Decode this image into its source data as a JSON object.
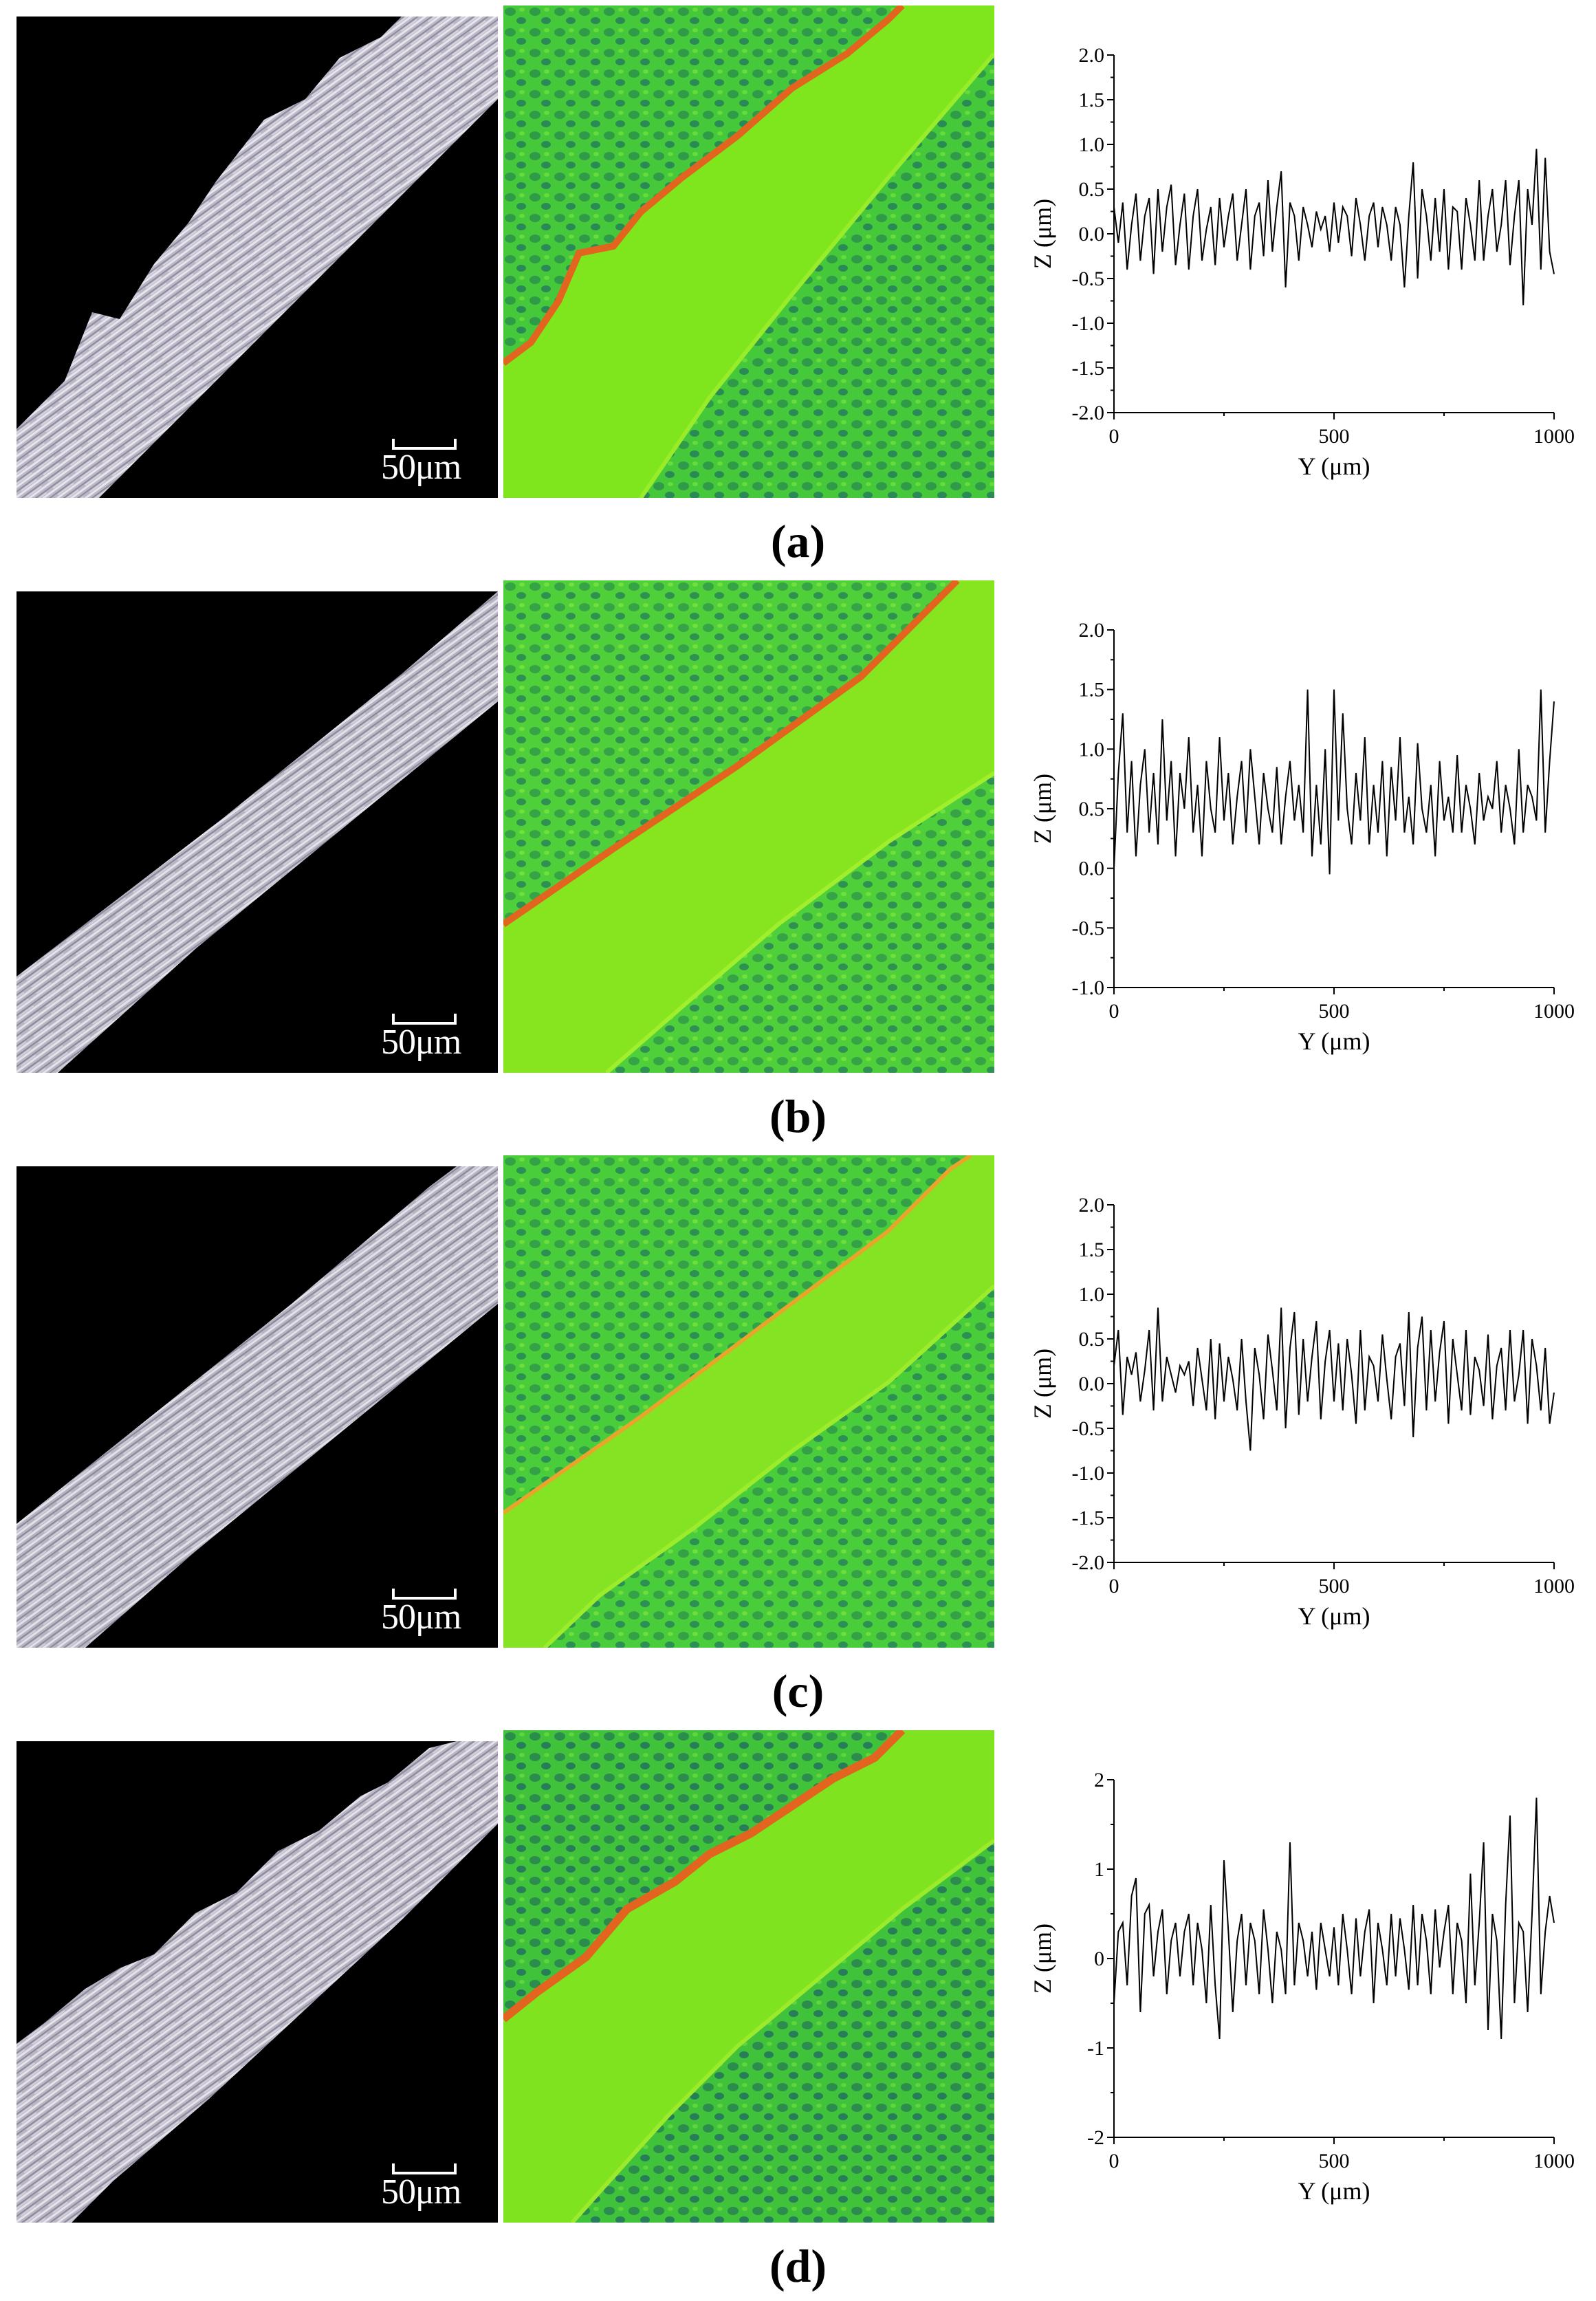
{
  "chart_data": [
    {
      "type": "line",
      "panel": "(a)",
      "xlabel": "Y (μm)",
      "ylabel": "Z (μm)",
      "xlim": [
        0,
        1000
      ],
      "ylim": [
        -2.0,
        2.0
      ],
      "xticks": [
        "0",
        "500",
        "1000"
      ],
      "yticks": [
        "-2.0",
        "-1.5",
        "-1.0",
        "-0.5",
        "0.0",
        "0.5",
        "1.0",
        "1.5",
        "2.0"
      ],
      "x": [
        0,
        10,
        20,
        30,
        40,
        50,
        60,
        70,
        80,
        90,
        100,
        110,
        120,
        130,
        140,
        150,
        160,
        170,
        180,
        190,
        200,
        210,
        220,
        230,
        240,
        250,
        260,
        270,
        280,
        290,
        300,
        310,
        320,
        330,
        340,
        350,
        360,
        370,
        380,
        390,
        400,
        410,
        420,
        430,
        440,
        450,
        460,
        470,
        480,
        490,
        500,
        510,
        520,
        530,
        540,
        550,
        560,
        570,
        580,
        590,
        600,
        610,
        620,
        630,
        640,
        650,
        660,
        670,
        680,
        690,
        700,
        710,
        720,
        730,
        740,
        750,
        760,
        770,
        780,
        790,
        800,
        810,
        820,
        830,
        840,
        850,
        860,
        870,
        880,
        890,
        900,
        910,
        920,
        930,
        940,
        950,
        960,
        970,
        980,
        990,
        1000
      ],
      "series": [
        {
          "values": [
            0.3,
            -0.1,
            0.35,
            -0.4,
            0.1,
            0.45,
            -0.3,
            0.2,
            0.4,
            -0.45,
            0.5,
            -0.2,
            0.3,
            0.55,
            -0.35,
            0.1,
            0.45,
            -0.4,
            0.2,
            0.5,
            -0.3,
            0.05,
            0.3,
            -0.35,
            0.4,
            -0.15,
            0.2,
            0.45,
            -0.3,
            0.1,
            0.5,
            -0.4,
            0.2,
            0.35,
            -0.25,
            0.6,
            -0.2,
            0.3,
            0.7,
            -0.6,
            0.35,
            0.2,
            -0.3,
            0.3,
            0.1,
            -0.15,
            0.25,
            0.05,
            0.2,
            -0.2,
            0.35,
            -0.1,
            0.3,
            0.2,
            -0.25,
            0.4,
            0.1,
            -0.3,
            0.2,
            0.35,
            -0.15,
            0.3,
            0.1,
            -0.3,
            0.3,
            0.1,
            -0.6,
            0.2,
            0.8,
            -0.5,
            0.5,
            0.2,
            -0.3,
            0.4,
            -0.2,
            0.5,
            -0.4,
            0.3,
            0.25,
            -0.4,
            0.4,
            0.1,
            -0.3,
            0.6,
            -0.3,
            0.2,
            0.5,
            -0.2,
            0.1,
            0.6,
            -0.35,
            0.2,
            0.6,
            -0.8,
            0.5,
            0.1,
            0.95,
            -0.4,
            0.85,
            -0.2,
            -0.45
          ]
        }
      ]
    },
    {
      "type": "line",
      "panel": "(b)",
      "xlabel": "Y (μm)",
      "ylabel": "Z (μm)",
      "xlim": [
        0,
        1000
      ],
      "ylim": [
        -1.0,
        2.0
      ],
      "xticks": [
        "0",
        "500",
        "1000"
      ],
      "yticks": [
        "-1.0",
        "-0.5",
        "0.0",
        "0.5",
        "1.0",
        "1.5",
        "2.0"
      ],
      "x": [
        0,
        10,
        20,
        30,
        40,
        50,
        60,
        70,
        80,
        90,
        100,
        110,
        120,
        130,
        140,
        150,
        160,
        170,
        180,
        190,
        200,
        210,
        220,
        230,
        240,
        250,
        260,
        270,
        280,
        290,
        300,
        310,
        320,
        330,
        340,
        350,
        360,
        370,
        380,
        390,
        400,
        410,
        420,
        430,
        440,
        450,
        460,
        470,
        480,
        490,
        500,
        510,
        520,
        530,
        540,
        550,
        560,
        570,
        580,
        590,
        600,
        610,
        620,
        630,
        640,
        650,
        660,
        670,
        680,
        690,
        700,
        710,
        720,
        730,
        740,
        750,
        760,
        770,
        780,
        790,
        800,
        810,
        820,
        830,
        840,
        850,
        860,
        870,
        880,
        890,
        900,
        910,
        920,
        930,
        940,
        950,
        960,
        970,
        980,
        990,
        1000
      ],
      "series": [
        {
          "values": [
            0.0,
            0.8,
            1.3,
            0.3,
            0.9,
            0.1,
            0.7,
            1.0,
            0.3,
            0.8,
            0.2,
            1.25,
            0.4,
            0.9,
            0.1,
            0.8,
            0.5,
            1.1,
            0.3,
            0.7,
            0.1,
            0.9,
            0.5,
            0.3,
            1.1,
            0.4,
            0.8,
            0.2,
            0.6,
            0.9,
            0.3,
            1.0,
            0.6,
            0.2,
            0.8,
            0.5,
            0.3,
            0.85,
            0.2,
            0.6,
            0.9,
            0.4,
            0.7,
            0.3,
            1.5,
            0.1,
            0.7,
            0.2,
            1.0,
            -0.05,
            1.5,
            0.4,
            1.3,
            0.5,
            0.2,
            0.8,
            0.4,
            1.1,
            0.2,
            0.7,
            0.3,
            0.9,
            0.1,
            0.85,
            0.4,
            1.1,
            0.3,
            0.6,
            0.2,
            1.05,
            0.5,
            0.3,
            0.7,
            0.1,
            0.9,
            0.4,
            0.6,
            0.3,
            0.95,
            0.3,
            0.7,
            0.5,
            0.2,
            0.8,
            0.4,
            0.6,
            0.5,
            0.9,
            0.3,
            0.7,
            0.5,
            0.2,
            1.0,
            0.3,
            0.7,
            0.6,
            0.4,
            1.5,
            0.3,
            0.9,
            1.4
          ]
        }
      ]
    },
    {
      "type": "line",
      "panel": "(c)",
      "xlabel": "Y (μm)",
      "ylabel": "Z (μm)",
      "xlim": [
        0,
        1000
      ],
      "ylim": [
        -2.0,
        2.0
      ],
      "xticks": [
        "0",
        "500",
        "1000"
      ],
      "yticks": [
        "-2.0",
        "-1.5",
        "-1.0",
        "-0.5",
        "0.0",
        "0.5",
        "1.0",
        "1.5",
        "2.0"
      ],
      "x": [
        0,
        10,
        20,
        30,
        40,
        50,
        60,
        70,
        80,
        90,
        100,
        110,
        120,
        130,
        140,
        150,
        160,
        170,
        180,
        190,
        200,
        210,
        220,
        230,
        240,
        250,
        260,
        270,
        280,
        290,
        300,
        310,
        320,
        330,
        340,
        350,
        360,
        370,
        380,
        390,
        400,
        410,
        420,
        430,
        440,
        450,
        460,
        470,
        480,
        490,
        500,
        510,
        520,
        530,
        540,
        550,
        560,
        570,
        580,
        590,
        600,
        610,
        620,
        630,
        640,
        650,
        660,
        670,
        680,
        690,
        700,
        710,
        720,
        730,
        740,
        750,
        760,
        770,
        780,
        790,
        800,
        810,
        820,
        830,
        840,
        850,
        860,
        870,
        880,
        890,
        900,
        910,
        920,
        930,
        940,
        950,
        960,
        970,
        980,
        990,
        1000
      ],
      "series": [
        {
          "values": [
            0.2,
            0.6,
            -0.35,
            0.3,
            0.1,
            0.35,
            -0.2,
            0.15,
            0.6,
            -0.3,
            0.85,
            -0.2,
            0.3,
            0.1,
            -0.1,
            0.2,
            0.1,
            0.25,
            -0.25,
            0.4,
            0.05,
            -0.3,
            0.5,
            -0.4,
            0.45,
            -0.2,
            0.3,
            0.05,
            -0.3,
            0.5,
            -0.2,
            -0.75,
            0.4,
            0.1,
            -0.4,
            0.55,
            0.15,
            -0.3,
            0.85,
            -0.5,
            0.4,
            0.8,
            -0.35,
            0.5,
            -0.2,
            0.3,
            0.7,
            -0.4,
            0.25,
            0.6,
            -0.2,
            0.45,
            -0.3,
            0.5,
            0.1,
            -0.45,
            0.6,
            -0.3,
            0.3,
            0.2,
            -0.2,
            0.55,
            0.05,
            -0.4,
            0.3,
            0.45,
            -0.25,
            0.8,
            -0.6,
            0.4,
            0.75,
            -0.3,
            0.6,
            -0.2,
            0.35,
            0.7,
            -0.45,
            0.5,
            0.1,
            -0.3,
            0.6,
            -0.35,
            0.3,
            0.15,
            -0.25,
            0.55,
            -0.4,
            0.2,
            0.4,
            -0.3,
            0.6,
            -0.2,
            0.1,
            0.6,
            -0.45,
            0.5,
            0.2,
            -0.3,
            0.4,
            -0.45,
            -0.1
          ]
        }
      ]
    },
    {
      "type": "line",
      "panel": "(d)",
      "xlabel": "Y (μm)",
      "ylabel": "Z (μm)",
      "xlim": [
        0,
        1000
      ],
      "ylim": [
        -2,
        2
      ],
      "xticks": [
        "0",
        "500",
        "1000"
      ],
      "yticks": [
        "-2",
        "-1",
        "0",
        "1",
        "2"
      ],
      "x": [
        0,
        10,
        20,
        30,
        40,
        50,
        60,
        70,
        80,
        90,
        100,
        110,
        120,
        130,
        140,
        150,
        160,
        170,
        180,
        190,
        200,
        210,
        220,
        230,
        240,
        250,
        260,
        270,
        280,
        290,
        300,
        310,
        320,
        330,
        340,
        350,
        360,
        370,
        380,
        390,
        400,
        410,
        420,
        430,
        440,
        450,
        460,
        470,
        480,
        490,
        500,
        510,
        520,
        530,
        540,
        550,
        560,
        570,
        580,
        590,
        600,
        610,
        620,
        630,
        640,
        650,
        660,
        670,
        680,
        690,
        700,
        710,
        720,
        730,
        740,
        750,
        760,
        770,
        780,
        790,
        800,
        810,
        820,
        830,
        840,
        850,
        860,
        870,
        880,
        890,
        900,
        910,
        920,
        930,
        940,
        950,
        960,
        970,
        980,
        990,
        1000
      ],
      "series": [
        {
          "values": [
            -0.5,
            0.3,
            0.4,
            -0.3,
            0.7,
            0.9,
            -0.6,
            0.5,
            0.6,
            -0.2,
            0.3,
            0.55,
            -0.4,
            0.2,
            0.4,
            -0.2,
            0.3,
            0.5,
            -0.3,
            0.4,
            0.1,
            -0.5,
            0.6,
            -0.3,
            -0.9,
            1.1,
            0.3,
            -0.6,
            0.2,
            0.5,
            -0.3,
            0.4,
            0.2,
            -0.4,
            0.55,
            0.1,
            -0.5,
            0.3,
            0.1,
            -0.4,
            1.3,
            -0.3,
            0.4,
            0.2,
            -0.2,
            0.3,
            -0.35,
            0.4,
            0.1,
            -0.2,
            0.35,
            -0.3,
            0.5,
            0.1,
            -0.4,
            0.45,
            -0.2,
            0.3,
            0.55,
            -0.5,
            0.4,
            0.1,
            -0.3,
            0.5,
            -0.2,
            0.45,
            0.1,
            -0.35,
            0.6,
            -0.3,
            0.5,
            0.2,
            -0.4,
            0.55,
            -0.1,
            0.3,
            0.6,
            -0.4,
            0.4,
            0.2,
            -0.5,
            0.95,
            -0.3,
            0.4,
            1.3,
            -0.8,
            0.5,
            0.2,
            -0.9,
            0.6,
            1.6,
            -0.5,
            0.4,
            0.3,
            -0.6,
            0.5,
            1.8,
            -0.4,
            0.3,
            0.7,
            0.4
          ]
        }
      ]
    }
  ],
  "scale_bar_label": "50μm",
  "panel_labels": [
    "(a)",
    "(b)",
    "(c)",
    "(d)"
  ],
  "colors": {
    "line": "#000000",
    "micrograph_background": "#000000",
    "topography_base": "#3fce2b",
    "topography_channel": "#7fe61e",
    "topography_edge": "#e2641f"
  }
}
